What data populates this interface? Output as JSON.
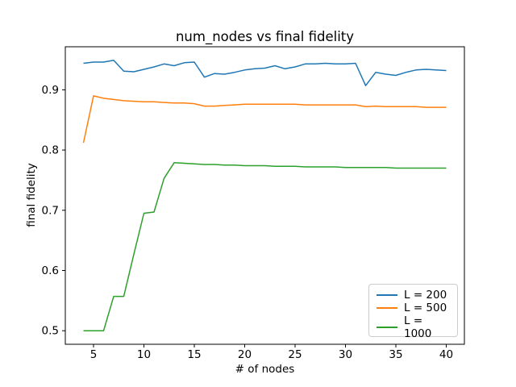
{
  "chart_data": {
    "type": "line",
    "title": "num_nodes vs final fidelity",
    "xlabel": "# of nodes",
    "ylabel": "final fidelity",
    "grid": false,
    "legend_position": "lower right",
    "xlim": [
      2.2,
      41.8
    ],
    "ylim": [
      0.4775,
      0.9715
    ],
    "xticks": [
      5,
      10,
      15,
      20,
      25,
      30,
      35,
      40
    ],
    "yticks": [
      0.5,
      0.6,
      0.7,
      0.8,
      0.9
    ],
    "x": [
      4,
      5,
      6,
      7,
      8,
      9,
      10,
      11,
      12,
      13,
      14,
      15,
      16,
      17,
      18,
      19,
      20,
      21,
      22,
      23,
      24,
      25,
      26,
      27,
      28,
      29,
      30,
      31,
      32,
      33,
      34,
      35,
      36,
      37,
      38,
      39,
      40
    ],
    "series": [
      {
        "name": "L = 200",
        "color": "#1f77b4",
        "values": [
          0.944,
          0.946,
          0.946,
          0.949,
          0.931,
          0.93,
          0.934,
          0.938,
          0.943,
          0.94,
          0.945,
          0.946,
          0.921,
          0.927,
          0.926,
          0.929,
          0.933,
          0.935,
          0.936,
          0.94,
          0.935,
          0.938,
          0.943,
          0.943,
          0.944,
          0.943,
          0.943,
          0.944,
          0.907,
          0.929,
          0.926,
          0.924,
          0.929,
          0.933,
          0.934,
          0.933,
          0.932
        ]
      },
      {
        "name": "L = 500",
        "color": "#ff7f0e",
        "values": [
          0.812,
          0.89,
          0.886,
          0.884,
          0.882,
          0.881,
          0.88,
          0.88,
          0.879,
          0.878,
          0.878,
          0.877,
          0.873,
          0.873,
          0.874,
          0.875,
          0.876,
          0.876,
          0.876,
          0.876,
          0.876,
          0.876,
          0.875,
          0.875,
          0.875,
          0.875,
          0.875,
          0.875,
          0.872,
          0.873,
          0.872,
          0.872,
          0.872,
          0.872,
          0.871,
          0.871,
          0.871
        ]
      },
      {
        "name": "L = 1000",
        "color": "#2ca02c",
        "values": [
          0.5,
          0.5,
          0.5,
          0.557,
          0.557,
          0.627,
          0.695,
          0.697,
          0.753,
          0.779,
          0.778,
          0.777,
          0.776,
          0.776,
          0.775,
          0.775,
          0.774,
          0.774,
          0.774,
          0.773,
          0.773,
          0.773,
          0.772,
          0.772,
          0.772,
          0.772,
          0.771,
          0.771,
          0.771,
          0.771,
          0.771,
          0.77,
          0.77,
          0.77,
          0.77,
          0.77,
          0.77
        ]
      }
    ]
  }
}
